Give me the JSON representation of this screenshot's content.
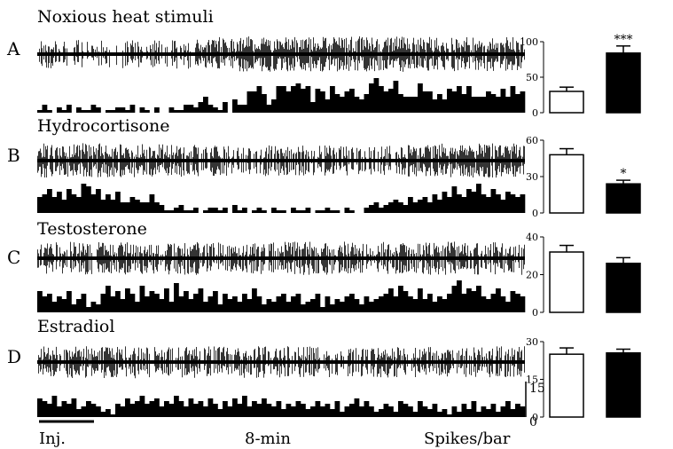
{
  "figure": {
    "footer": {
      "left": "Inj.",
      "center": "8-min",
      "right": "Spikes/bar"
    },
    "histogram_scale": {
      "top": "15",
      "bottom": "0"
    }
  },
  "chart_data": [
    {
      "type": "bar",
      "panel": "A",
      "title": "Noxious heat stimuli",
      "ylim": [
        0,
        100
      ],
      "yticks": [
        "0",
        "50",
        "100"
      ],
      "values": [
        30,
        84
      ],
      "errors": [
        6,
        10
      ],
      "fills": [
        "#ffffff",
        "#000000"
      ],
      "significance": [
        "",
        "***"
      ],
      "trace_density": [
        0.45,
        0.45,
        0.45,
        0.45,
        0.45,
        0.5,
        0.55,
        0.85,
        0.9,
        0.9,
        0.85,
        0.85,
        0.9,
        0.9,
        0.9,
        0.85,
        0.85,
        0.85,
        0.8,
        0.8
      ],
      "histogram": [
        1,
        3,
        1,
        0,
        2,
        1,
        3,
        0,
        2,
        1,
        1,
        3,
        2,
        0,
        1,
        1,
        2,
        2,
        1,
        3,
        0,
        2,
        1,
        0,
        2,
        0,
        0,
        2,
        1,
        1,
        3,
        3,
        2,
        4,
        6,
        3,
        2,
        1,
        4,
        0,
        5,
        3,
        3,
        8,
        8,
        10,
        7,
        3,
        5,
        10,
        10,
        8,
        10,
        11,
        9,
        10,
        4,
        9,
        8,
        5,
        10,
        7,
        6,
        8,
        9,
        6,
        5,
        7,
        11,
        13,
        10,
        8,
        9,
        12,
        7,
        6,
        6,
        6,
        11,
        8,
        8,
        5,
        7,
        5,
        9,
        8,
        10,
        7,
        10,
        6,
        6,
        6,
        8,
        7,
        6,
        9,
        6,
        10,
        7,
        8
      ]
    },
    {
      "type": "bar",
      "panel": "B",
      "title": "Hydrocortisone",
      "ylim": [
        0,
        60
      ],
      "yticks": [
        "0",
        "30",
        "60"
      ],
      "values": [
        48,
        24
      ],
      "errors": [
        5,
        3
      ],
      "fills": [
        "#ffffff",
        "#000000"
      ],
      "significance": [
        "",
        "*"
      ],
      "trace_density": [
        0.85,
        0.85,
        0.85,
        0.8,
        0.8,
        0.7,
        0.65,
        0.6,
        0.6,
        0.6,
        0.6,
        0.6,
        0.6,
        0.55,
        0.6,
        0.7,
        0.8,
        0.85,
        0.85,
        0.85
      ],
      "histogram": [
        6,
        7,
        9,
        6,
        8,
        5,
        9,
        7,
        6,
        11,
        10,
        7,
        9,
        5,
        7,
        5,
        8,
        4,
        4,
        6,
        5,
        4,
        4,
        7,
        4,
        3,
        1,
        1,
        2,
        3,
        1,
        1,
        2,
        0,
        1,
        2,
        2,
        1,
        2,
        0,
        3,
        1,
        2,
        0,
        1,
        2,
        1,
        0,
        2,
        1,
        1,
        0,
        2,
        1,
        1,
        2,
        0,
        1,
        1,
        2,
        1,
        1,
        0,
        2,
        1,
        0,
        0,
        2,
        3,
        4,
        2,
        3,
        4,
        5,
        4,
        3,
        6,
        4,
        5,
        6,
        4,
        7,
        5,
        8,
        6,
        10,
        7,
        6,
        9,
        8,
        11,
        7,
        6,
        9,
        7,
        5,
        8,
        7,
        6,
        7
      ]
    },
    {
      "type": "bar",
      "panel": "C",
      "title": "Testosterone",
      "ylim": [
        0,
        40
      ],
      "yticks": [
        "0",
        "20",
        "40"
      ],
      "values": [
        32,
        26
      ],
      "errors": [
        3.5,
        3
      ],
      "fills": [
        "#ffffff",
        "#000000"
      ],
      "significance": [
        "",
        ""
      ],
      "trace_density": [
        0.75,
        0.75,
        0.75,
        0.75,
        0.75,
        0.75,
        0.75,
        0.75,
        0.7,
        0.7,
        0.75,
        0.75,
        0.75,
        0.7,
        0.7,
        0.75,
        0.75,
        0.75,
        0.75,
        0.75
      ],
      "histogram": [
        8,
        6,
        7,
        4,
        6,
        5,
        8,
        3,
        5,
        7,
        2,
        4,
        3,
        7,
        10,
        6,
        8,
        5,
        9,
        7,
        4,
        10,
        6,
        8,
        7,
        5,
        9,
        4,
        11,
        6,
        8,
        5,
        7,
        9,
        4,
        6,
        8,
        3,
        7,
        5,
        6,
        4,
        7,
        5,
        9,
        6,
        3,
        5,
        4,
        6,
        7,
        4,
        6,
        7,
        3,
        4,
        5,
        7,
        2,
        6,
        3,
        5,
        4,
        6,
        7,
        5,
        3,
        6,
        4,
        5,
        6,
        7,
        9,
        6,
        10,
        8,
        6,
        5,
        9,
        5,
        7,
        4,
        6,
        5,
        7,
        10,
        12,
        7,
        9,
        8,
        10,
        6,
        5,
        7,
        9,
        6,
        4,
        8,
        7,
        6
      ]
    },
    {
      "type": "bar",
      "panel": "D",
      "title": "Estradiol",
      "ylim": [
        0,
        30
      ],
      "yticks": [
        "0",
        "15",
        "30"
      ],
      "values": [
        25,
        25.5
      ],
      "errors": [
        2.5,
        1.5
      ],
      "fills": [
        "#ffffff",
        "#000000"
      ],
      "significance": [
        "",
        ""
      ],
      "trace_density": [
        0.7,
        0.7,
        0.7,
        0.7,
        0.7,
        0.65,
        0.65,
        0.65,
        0.65,
        0.65,
        0.65,
        0.6,
        0.6,
        0.6,
        0.6,
        0.6,
        0.65,
        0.65,
        0.65,
        0.65
      ],
      "histogram": [
        7,
        6,
        5,
        8,
        4,
        6,
        5,
        7,
        3,
        4,
        6,
        5,
        4,
        2,
        3,
        1,
        5,
        4,
        7,
        5,
        6,
        8,
        5,
        6,
        7,
        4,
        6,
        5,
        8,
        6,
        4,
        7,
        5,
        6,
        4,
        7,
        5,
        3,
        6,
        4,
        7,
        5,
        8,
        4,
        6,
        5,
        7,
        5,
        4,
        6,
        3,
        5,
        4,
        6,
        5,
        3,
        4,
        6,
        4,
        5,
        3,
        6,
        2,
        4,
        5,
        7,
        4,
        6,
        4,
        2,
        3,
        5,
        4,
        2,
        6,
        5,
        4,
        2,
        6,
        4,
        3,
        5,
        2,
        3,
        1,
        4,
        2,
        5,
        3,
        6,
        2,
        4,
        3,
        5,
        2,
        4,
        6,
        3,
        5,
        4
      ]
    }
  ]
}
